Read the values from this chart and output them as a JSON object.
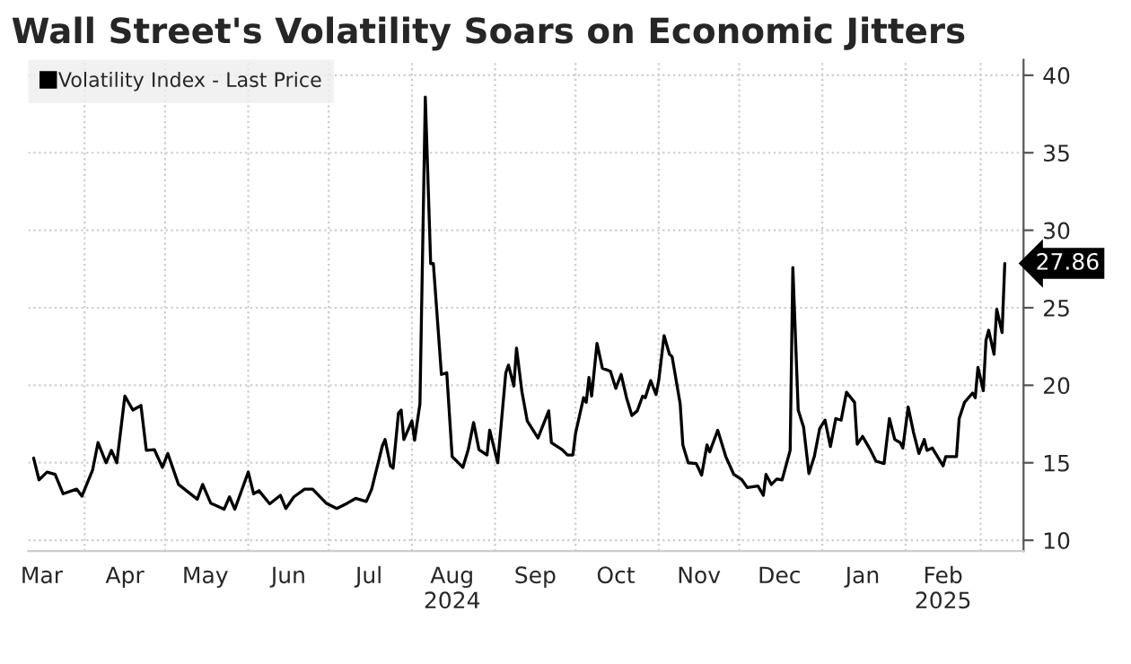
{
  "chart_data": {
    "type": "line",
    "title": "Wall Street's Volatility Soars on Economic Jitters",
    "x": [
      "2024-03-13",
      "2024-03-15",
      "2024-03-18",
      "2024-03-21",
      "2024-03-24",
      "2024-03-29",
      "2024-03-31",
      "2024-04-04",
      "2024-04-06",
      "2024-04-09",
      "2024-04-11",
      "2024-04-13",
      "2024-04-16",
      "2024-04-19",
      "2024-04-22",
      "2024-04-24",
      "2024-04-27",
      "2024-04-30",
      "2024-05-02",
      "2024-05-06",
      "2024-05-13",
      "2024-05-15",
      "2024-05-18",
      "2024-05-23",
      "2024-05-25",
      "2024-05-27",
      "2024-06-01",
      "2024-06-03",
      "2024-06-05",
      "2024-06-09",
      "2024-06-13",
      "2024-06-15",
      "2024-06-18",
      "2024-06-22",
      "2024-06-25",
      "2024-06-30",
      "2024-07-04",
      "2024-07-08",
      "2024-07-11",
      "2024-07-15",
      "2024-07-17",
      "2024-07-21",
      "2024-07-22",
      "2024-07-24",
      "2024-07-25",
      "2024-07-27",
      "2024-07-28",
      "2024-07-29",
      "2024-08-01",
      "2024-08-02",
      "2024-08-04",
      "2024-08-06",
      "2024-08-08",
      "2024-08-09",
      "2024-08-12",
      "2024-08-14",
      "2024-08-16",
      "2024-08-20",
      "2024-08-22",
      "2024-08-24",
      "2024-08-26",
      "2024-08-29",
      "2024-08-30",
      "2024-09-02",
      "2024-09-05",
      "2024-09-06",
      "2024-09-08",
      "2024-09-09",
      "2024-09-11",
      "2024-09-13",
      "2024-09-17",
      "2024-09-21",
      "2024-09-22",
      "2024-09-26",
      "2024-09-28",
      "2024-09-30",
      "2024-10-01",
      "2024-10-04",
      "2024-10-05",
      "2024-10-06",
      "2024-10-07",
      "2024-10-09",
      "2024-10-11",
      "2024-10-14",
      "2024-10-16",
      "2024-10-18",
      "2024-10-20",
      "2024-10-22",
      "2024-10-24",
      "2024-10-26",
      "2024-10-27",
      "2024-10-29",
      "2024-10-31",
      "2024-11-01",
      "2024-11-03",
      "2024-11-05",
      "2024-11-06",
      "2024-11-09",
      "2024-11-10",
      "2024-11-12",
      "2024-11-15",
      "2024-11-17",
      "2024-11-19",
      "2024-11-20",
      "2024-11-23",
      "2024-11-26",
      "2024-11-29",
      "2024-12-02",
      "2024-12-04",
      "2024-12-08",
      "2024-12-10",
      "2024-12-11",
      "2024-12-13",
      "2024-12-15",
      "2024-12-17",
      "2024-12-20",
      "2024-12-21",
      "2024-12-23",
      "2024-12-25",
      "2024-12-27",
      "2024-12-29",
      "2024-12-31",
      "2025-01-02",
      "2025-01-04",
      "2025-01-06",
      "2025-01-08",
      "2025-01-10",
      "2025-01-13",
      "2025-01-14",
      "2025-01-16",
      "2025-01-19",
      "2025-01-21",
      "2025-01-24",
      "2025-01-26",
      "2025-01-28",
      "2025-01-30",
      "2025-01-31",
      "2025-02-02",
      "2025-02-04",
      "2025-02-06",
      "2025-02-08",
      "2025-02-09",
      "2025-02-11",
      "2025-02-15",
      "2025-02-16",
      "2025-02-20",
      "2025-02-21",
      "2025-02-23",
      "2025-02-26",
      "2025-02-27",
      "2025-02-28",
      "2025-03-02",
      "2025-03-03",
      "2025-03-04",
      "2025-03-06",
      "2025-03-07",
      "2025-03-09",
      "2025-03-10"
    ],
    "series": [
      {
        "name": "Volatility Index - Last Price",
        "color": "#000000",
        "values": [
          15.3,
          13.9,
          14.4,
          14.25,
          13.0,
          13.3,
          12.85,
          14.55,
          16.3,
          15.0,
          15.8,
          15.0,
          19.3,
          18.4,
          18.7,
          15.8,
          15.85,
          14.7,
          15.6,
          13.6,
          12.65,
          13.6,
          12.4,
          12.0,
          12.8,
          12.0,
          14.4,
          13.0,
          13.2,
          12.35,
          12.9,
          12.05,
          12.8,
          13.3,
          13.3,
          12.4,
          12.05,
          12.4,
          12.7,
          12.5,
          13.3,
          16.1,
          16.5,
          14.8,
          14.65,
          18.2,
          18.4,
          16.5,
          17.7,
          16.45,
          18.8,
          38.6,
          27.85,
          27.85,
          20.7,
          20.8,
          15.4,
          14.7,
          15.85,
          17.6,
          15.85,
          15.5,
          17.1,
          15.0,
          20.8,
          21.3,
          19.95,
          22.4,
          19.6,
          17.7,
          16.6,
          18.35,
          16.3,
          15.85,
          15.5,
          15.5,
          16.9,
          19.2,
          18.9,
          20.5,
          19.3,
          22.7,
          21.1,
          20.9,
          19.8,
          20.7,
          19.2,
          18.05,
          18.35,
          19.3,
          19.2,
          20.3,
          19.4,
          20.3,
          23.2,
          22.0,
          21.85,
          18.8,
          16.15,
          15.0,
          14.95,
          14.2,
          16.15,
          15.7,
          17.1,
          15.4,
          14.25,
          13.9,
          13.4,
          13.5,
          12.9,
          14.25,
          13.6,
          13.95,
          13.9,
          15.8,
          27.6,
          18.4,
          17.3,
          14.3,
          15.4,
          17.2,
          17.75,
          16.05,
          17.85,
          17.75,
          19.55,
          18.9,
          16.2,
          16.7,
          15.8,
          15.1,
          14.95,
          17.85,
          16.5,
          16.3,
          15.95,
          18.6,
          16.95,
          15.6,
          16.5,
          15.8,
          15.95,
          14.8,
          15.4,
          15.4,
          17.85,
          18.9,
          19.5,
          19.2,
          21.15,
          19.65,
          22.9,
          23.55,
          22.0,
          24.9,
          23.4,
          27.86
        ]
      }
    ],
    "xlim": [
      "2024-03-11",
      "2025-03-17"
    ],
    "xticks": [
      {
        "value": "2024-03-16",
        "label": "Mar"
      },
      {
        "value": "2024-04-01",
        "label": null
      },
      {
        "value": "2024-04-16",
        "label": "Apr"
      },
      {
        "value": "2024-05-01",
        "label": null
      },
      {
        "value": "2024-05-16",
        "label": "May"
      },
      {
        "value": "2024-06-01",
        "label": null
      },
      {
        "value": "2024-06-16",
        "label": "Jun"
      },
      {
        "value": "2024-07-01",
        "label": null
      },
      {
        "value": "2024-07-16",
        "label": "Jul"
      },
      {
        "value": "2024-08-01",
        "label": null
      },
      {
        "value": "2024-08-16",
        "label": "Aug\n2024"
      },
      {
        "value": "2024-09-01",
        "label": null
      },
      {
        "value": "2024-09-16",
        "label": "Sep"
      },
      {
        "value": "2024-10-01",
        "label": null
      },
      {
        "value": "2024-10-16",
        "label": "Oct"
      },
      {
        "value": "2024-11-01",
        "label": null
      },
      {
        "value": "2024-11-16",
        "label": "Nov"
      },
      {
        "value": "2024-12-01",
        "label": null
      },
      {
        "value": "2024-12-16",
        "label": "Dec"
      },
      {
        "value": "2025-01-01",
        "label": null
      },
      {
        "value": "2025-01-16",
        "label": "Jan"
      },
      {
        "value": "2025-02-01",
        "label": null
      },
      {
        "value": "2025-02-15",
        "label": "Feb\n2025"
      },
      {
        "value": "2025-03-01",
        "label": null
      }
    ],
    "ylim": [
      9.3,
      41
    ],
    "yticks": [
      10,
      15,
      20,
      25,
      30,
      35,
      40
    ],
    "grid": true,
    "legend": "top left",
    "marker": "none",
    "line_style": "solid",
    "annotations": [
      {
        "text": "27.86",
        "x": "2025-03-10",
        "y": 27.86
      }
    ]
  }
}
